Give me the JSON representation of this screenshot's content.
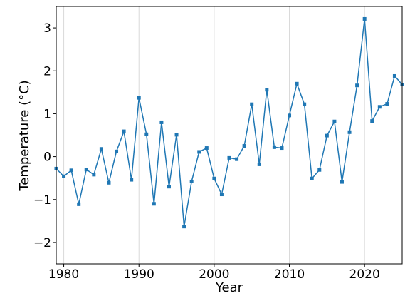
{
  "chart_data": {
    "type": "line",
    "title": "",
    "xlabel": "Year",
    "ylabel": "Temperature (°C)",
    "xlim": [
      1979,
      2025
    ],
    "ylim": [
      -2.5,
      3.5
    ],
    "xticks": [
      1980,
      1990,
      2000,
      2010,
      2020
    ],
    "xtick_labels": [
      "1980",
      "1990",
      "2000",
      "2010",
      "2020"
    ],
    "yticks": [
      -2,
      -1,
      0,
      1,
      2,
      3
    ],
    "ytick_labels": [
      "−2",
      "−1",
      "0",
      "1",
      "2",
      "3"
    ],
    "grid": "vertical gridlines at x ticks",
    "legend": "none",
    "series": [
      {
        "color": "#1f77b4",
        "marker": "square",
        "x": [
          1979,
          1980,
          1981,
          1982,
          1983,
          1984,
          1985,
          1986,
          1987,
          1988,
          1989,
          1990,
          1991,
          1992,
          1993,
          1994,
          1995,
          1996,
          1997,
          1998,
          1999,
          2000,
          2001,
          2002,
          2003,
          2004,
          2005,
          2006,
          2007,
          2008,
          2009,
          2010,
          2011,
          2012,
          2013,
          2014,
          2015,
          2016,
          2017,
          2018,
          2019,
          2020,
          2021,
          2022,
          2023,
          2024,
          2025
        ],
        "y": [
          -0.28,
          -0.46,
          -0.32,
          -1.11,
          -0.3,
          -0.42,
          0.18,
          -0.61,
          0.12,
          0.59,
          -0.54,
          1.37,
          0.52,
          -1.1,
          0.8,
          -0.7,
          0.51,
          -1.63,
          -0.58,
          0.11,
          0.2,
          -0.51,
          -0.88,
          -0.03,
          -0.06,
          0.25,
          1.22,
          -0.18,
          1.56,
          0.22,
          0.2,
          0.96,
          1.7,
          1.22,
          -0.51,
          -0.31,
          0.49,
          0.82,
          -0.59,
          0.57,
          1.66,
          3.21,
          0.83,
          1.16,
          1.23,
          1.88,
          1.68
        ]
      }
    ]
  }
}
